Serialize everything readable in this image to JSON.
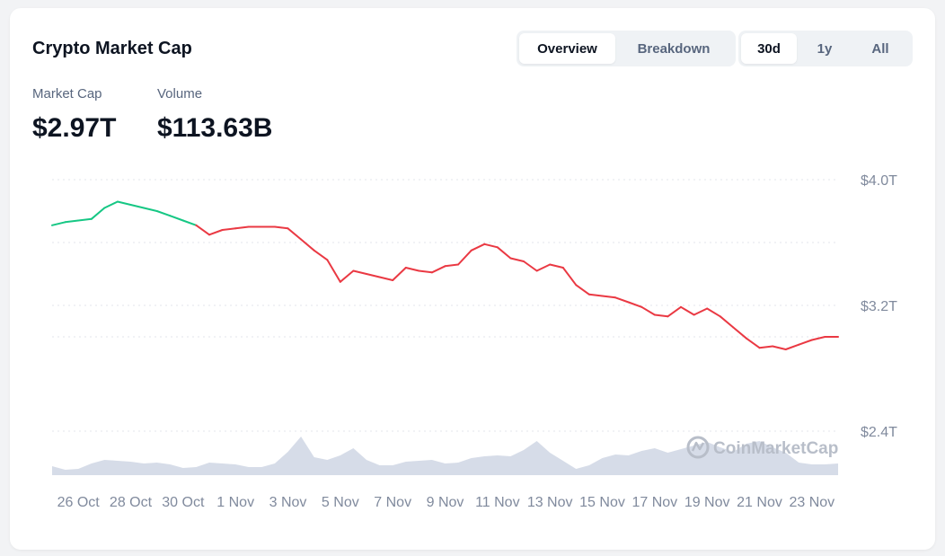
{
  "header": {
    "title": "Crypto Market Cap",
    "view_tabs": [
      {
        "label": "Overview",
        "active": true
      },
      {
        "label": "Breakdown",
        "active": false
      }
    ],
    "range_tabs": [
      {
        "label": "30d",
        "active": true
      },
      {
        "label": "1y",
        "active": false
      },
      {
        "label": "All",
        "active": false
      }
    ]
  },
  "stats": {
    "market_cap_label": "Market Cap",
    "market_cap_value": "$2.97T",
    "volume_label": "Volume",
    "volume_value": "$113.63B"
  },
  "watermark": {
    "text": "CoinMarketCap",
    "icon": "coinmarketcap-logo-icon"
  },
  "colors": {
    "up": "#16c784",
    "down": "#ea3943",
    "volume": "#cfd6e4",
    "grid": "#e3e6eb"
  },
  "chart_data": {
    "type": "line",
    "x_tick_labels": [
      "26 Oct",
      "28 Oct",
      "30 Oct",
      "1 Nov",
      "3 Nov",
      "5 Nov",
      "7 Nov",
      "9 Nov",
      "11 Nov",
      "13 Nov",
      "15 Nov",
      "17 Nov",
      "19 Nov",
      "21 Nov",
      "23 Nov"
    ],
    "y_tick_labels": [
      "$4.0T",
      "$3.2T",
      "$2.4T"
    ],
    "y_ticks": [
      4.0,
      3.2,
      2.4
    ],
    "ylim": [
      2.4,
      4.0
    ],
    "grid": true,
    "x_days": [
      0,
      0.5,
      1,
      1.5,
      2,
      2.5,
      3,
      3.5,
      4,
      4.5,
      5,
      5.5,
      6,
      6.5,
      7,
      7.5,
      8,
      8.5,
      9,
      9.5,
      10,
      10.5,
      11,
      11.5,
      12,
      12.5,
      13,
      13.5,
      14,
      14.5,
      15,
      15.5,
      16,
      16.5,
      17,
      17.5,
      18,
      18.5,
      19,
      19.5,
      20,
      20.5,
      21,
      21.5,
      22,
      22.5,
      23,
      23.5,
      24,
      24.5,
      25,
      25.5,
      26,
      26.5,
      27,
      27.5,
      28,
      28.5,
      29,
      29.5,
      30
    ],
    "market_cap": [
      3.71,
      3.73,
      3.74,
      3.75,
      3.82,
      3.86,
      3.84,
      3.82,
      3.8,
      3.77,
      3.74,
      3.71,
      3.65,
      3.68,
      3.69,
      3.7,
      3.7,
      3.7,
      3.69,
      3.62,
      3.55,
      3.49,
      3.35,
      3.42,
      3.4,
      3.38,
      3.36,
      3.44,
      3.42,
      3.41,
      3.45,
      3.46,
      3.55,
      3.59,
      3.57,
      3.5,
      3.48,
      3.42,
      3.46,
      3.44,
      3.33,
      3.27,
      3.26,
      3.25,
      3.22,
      3.19,
      3.14,
      3.13,
      3.19,
      3.14,
      3.18,
      3.13,
      3.06,
      2.99,
      2.93,
      2.94,
      2.92,
      2.95,
      2.98,
      3.0,
      3.0
    ],
    "volume": [
      0.1,
      0.06,
      0.07,
      0.13,
      0.17,
      0.16,
      0.15,
      0.13,
      0.14,
      0.12,
      0.08,
      0.09,
      0.14,
      0.13,
      0.12,
      0.09,
      0.09,
      0.13,
      0.26,
      0.43,
      0.2,
      0.17,
      0.22,
      0.3,
      0.17,
      0.11,
      0.11,
      0.15,
      0.16,
      0.17,
      0.13,
      0.14,
      0.19,
      0.21,
      0.22,
      0.21,
      0.28,
      0.38,
      0.25,
      0.16,
      0.07,
      0.11,
      0.19,
      0.23,
      0.22,
      0.27,
      0.3,
      0.25,
      0.29,
      0.33,
      0.37,
      0.31,
      0.26,
      0.35,
      0.38,
      0.31,
      0.25,
      0.14,
      0.12,
      0.12,
      0.13
    ]
  }
}
